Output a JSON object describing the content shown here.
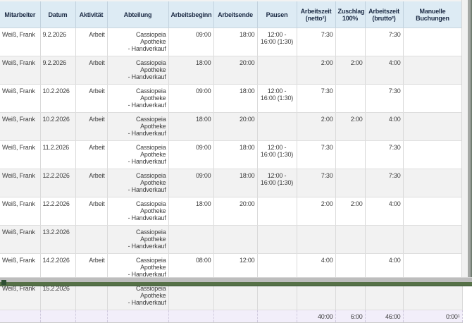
{
  "report": {
    "columns": [
      {
        "label": "Mitarbeiter"
      },
      {
        "label": "Datum"
      },
      {
        "label": "Aktivität"
      },
      {
        "label": "Abteilung"
      },
      {
        "label": "Arbeitsbeginn"
      },
      {
        "label": "Arbeitsende"
      },
      {
        "label": "Pausen"
      },
      {
        "label": "Arbeitszeit\n(netto¹)"
      },
      {
        "label": "Zuschlag\n100%"
      },
      {
        "label": "Arbeitszeit\n(brutto²)"
      },
      {
        "label": "Manuelle Buchungen"
      }
    ],
    "rows": [
      {
        "mitarbeiter": "Weiß, Frank",
        "datum": "9.2.2026",
        "aktivitaet": "Arbeit",
        "abteilung": "Cassiopeia Apotheke\n- Handverkauf",
        "beginn": "09:00",
        "ende": "18:00",
        "pausen": "12:00 -\n16:00 (1:30)",
        "netto": "7:30",
        "zuschlag": "",
        "brutto": "7:30",
        "manuell": ""
      },
      {
        "mitarbeiter": "Weiß, Frank",
        "datum": "9.2.2026",
        "aktivitaet": "Arbeit",
        "abteilung": "Cassiopeia Apotheke\n- Handverkauf",
        "beginn": "18:00",
        "ende": "20:00",
        "pausen": "",
        "netto": "2:00",
        "zuschlag": "2:00",
        "brutto": "4:00",
        "manuell": ""
      },
      {
        "mitarbeiter": "Weiß, Frank",
        "datum": "10.2.2026",
        "aktivitaet": "Arbeit",
        "abteilung": "Cassiopeia Apotheke\n- Handverkauf",
        "beginn": "09:00",
        "ende": "18:00",
        "pausen": "12:00 -\n16:00 (1:30)",
        "netto": "7:30",
        "zuschlag": "",
        "brutto": "7:30",
        "manuell": ""
      },
      {
        "mitarbeiter": "Weiß, Frank",
        "datum": "10.2.2026",
        "aktivitaet": "Arbeit",
        "abteilung": "Cassiopeia Apotheke\n- Handverkauf",
        "beginn": "18:00",
        "ende": "20:00",
        "pausen": "",
        "netto": "2:00",
        "zuschlag": "2:00",
        "brutto": "4:00",
        "manuell": ""
      },
      {
        "mitarbeiter": "Weiß, Frank",
        "datum": "11.2.2026",
        "aktivitaet": "Arbeit",
        "abteilung": "Cassiopeia Apotheke\n- Handverkauf",
        "beginn": "09:00",
        "ende": "18:00",
        "pausen": "12:00 -\n16:00 (1:30)",
        "netto": "7:30",
        "zuschlag": "",
        "brutto": "7:30",
        "manuell": ""
      },
      {
        "mitarbeiter": "Weiß, Frank",
        "datum": "12.2.2026",
        "aktivitaet": "Arbeit",
        "abteilung": "Cassiopeia Apotheke\n- Handverkauf",
        "beginn": "09:00",
        "ende": "18:00",
        "pausen": "12:00 -\n16:00 (1:30)",
        "netto": "7:30",
        "zuschlag": "",
        "brutto": "7:30",
        "manuell": ""
      },
      {
        "mitarbeiter": "Weiß, Frank",
        "datum": "12.2.2026",
        "aktivitaet": "Arbeit",
        "abteilung": "Cassiopeia Apotheke\n- Handverkauf",
        "beginn": "18:00",
        "ende": "20:00",
        "pausen": "",
        "netto": "2:00",
        "zuschlag": "2:00",
        "brutto": "4:00",
        "manuell": ""
      },
      {
        "mitarbeiter": "Weiß, Frank",
        "datum": "13.2.2026",
        "aktivitaet": "",
        "abteilung": "Cassiopeia Apotheke\n- Handverkauf",
        "beginn": "",
        "ende": "",
        "pausen": "",
        "netto": "",
        "zuschlag": "",
        "brutto": "",
        "manuell": ""
      },
      {
        "mitarbeiter": "Weiß, Frank",
        "datum": "14.2.2026",
        "aktivitaet": "Arbeit",
        "abteilung": "Cassiopeia Apotheke\n- Handverkauf",
        "beginn": "08:00",
        "ende": "12:00",
        "pausen": "",
        "netto": "4:00",
        "zuschlag": "",
        "brutto": "4:00",
        "manuell": ""
      },
      {
        "mitarbeiter": "Weiß, Frank",
        "datum": "15.2.2026",
        "aktivitaet": "",
        "abteilung": "Cassiopeia Apotheke\n- Handverkauf",
        "beginn": "",
        "ende": "",
        "pausen": "",
        "netto": "",
        "zuschlag": "",
        "brutto": "",
        "manuell": ""
      }
    ],
    "totals": {
      "netto": "40:00",
      "zuschlag": "6:00",
      "brutto": "46:00",
      "manuell": "0:00¹"
    },
    "colors": {
      "header_bg": "#ddebf4",
      "header_text": "#1c2b45",
      "row_alt_bg": "#f2f2f2",
      "totals_bg": "#f2eefa",
      "frame_green": "#567147"
    }
  }
}
